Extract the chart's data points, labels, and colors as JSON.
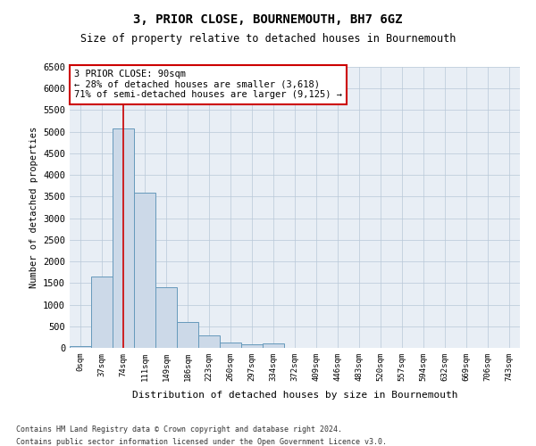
{
  "title": "3, PRIOR CLOSE, BOURNEMOUTH, BH7 6GZ",
  "subtitle": "Size of property relative to detached houses in Bournemouth",
  "xlabel": "Distribution of detached houses by size in Bournemouth",
  "ylabel": "Number of detached properties",
  "bar_color": "#ccd9e8",
  "bar_edge_color": "#6699bb",
  "background_color": "#ffffff",
  "plot_bg_color": "#e8eef5",
  "grid_color": "#b8c8d8",
  "property_line_color": "#cc0000",
  "annotation_box_edge_color": "#cc0000",
  "categories": [
    "0sqm",
    "37sqm",
    "74sqm",
    "111sqm",
    "149sqm",
    "186sqm",
    "223sqm",
    "260sqm",
    "297sqm",
    "334sqm",
    "372sqm",
    "409sqm",
    "446sqm",
    "483sqm",
    "520sqm",
    "557sqm",
    "594sqm",
    "632sqm",
    "669sqm",
    "706sqm",
    "743sqm"
  ],
  "values": [
    50,
    1650,
    5080,
    3600,
    1400,
    600,
    290,
    130,
    90,
    100,
    0,
    0,
    0,
    0,
    0,
    0,
    0,
    0,
    0,
    0,
    0
  ],
  "ylim": [
    0,
    6500
  ],
  "yticks": [
    0,
    500,
    1000,
    1500,
    2000,
    2500,
    3000,
    3500,
    4000,
    4500,
    5000,
    5500,
    6000,
    6500
  ],
  "property_bin_index": 2,
  "annotation_text_line1": "3 PRIOR CLOSE: 90sqm",
  "annotation_text_line2": "← 28% of detached houses are smaller (3,618)",
  "annotation_text_line3": "71% of semi-detached houses are larger (9,125) →",
  "footer_line1": "Contains HM Land Registry data © Crown copyright and database right 2024.",
  "footer_line2": "Contains public sector information licensed under the Open Government Licence v3.0.",
  "figsize": [
    6.0,
    5.0
  ],
  "dpi": 100
}
